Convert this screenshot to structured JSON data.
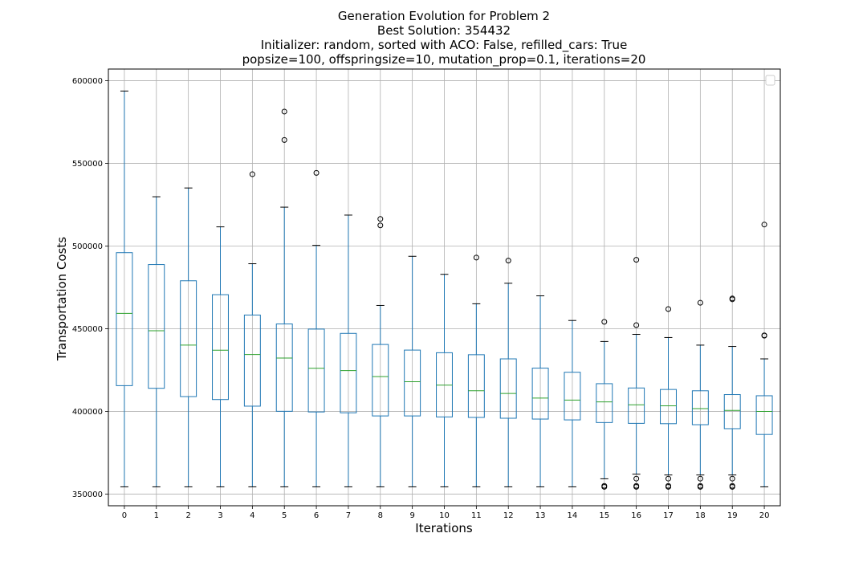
{
  "chart_data": {
    "type": "box",
    "title_lines": [
      "Generation Evolution for Problem 2",
      "Best Solution: 354432",
      "Initializer: random, sorted with ACO: False, refilled_cars: True",
      "popsize=100, offspringsize=10, mutation_prop=0.1, iterations=20"
    ],
    "xlabel": "Iterations",
    "ylabel": "Transportation Costs",
    "ylim": [
      343000,
      607000
    ],
    "yticks": [
      350000,
      400000,
      450000,
      500000,
      550000,
      600000
    ],
    "ytick_labels": [
      "350000",
      "400000",
      "450000",
      "500000",
      "550000",
      "600000"
    ],
    "grid": true,
    "legend": "top-right (empty)",
    "colors": {
      "box": "#1f77b4",
      "median": "#2ca02c",
      "whisker": "#1f77b4",
      "cap": "#000000",
      "grid": "#b0b0b0"
    },
    "categories": [
      "0",
      "1",
      "2",
      "3",
      "4",
      "5",
      "6",
      "7",
      "8",
      "9",
      "10",
      "11",
      "12",
      "13",
      "14",
      "15",
      "16",
      "17",
      "18",
      "19",
      "20"
    ],
    "boxes": [
      {
        "q1": 415600,
        "median": 459300,
        "q3": 496000,
        "whislo": 354432,
        "whishi": 593700,
        "fliers": []
      },
      {
        "q1": 414000,
        "median": 448800,
        "q3": 488800,
        "whislo": 354432,
        "whishi": 529800,
        "fliers": []
      },
      {
        "q1": 409000,
        "median": 440100,
        "q3": 479000,
        "whislo": 354432,
        "whishi": 535100,
        "fliers": []
      },
      {
        "q1": 407200,
        "median": 437000,
        "q3": 470600,
        "whislo": 354432,
        "whishi": 511600,
        "fliers": []
      },
      {
        "q1": 403200,
        "median": 434400,
        "q3": 458300,
        "whislo": 354432,
        "whishi": 489300,
        "fliers": [
          543400
        ]
      },
      {
        "q1": 400100,
        "median": 432300,
        "q3": 452900,
        "whislo": 354432,
        "whishi": 523500,
        "fliers": [
          564100,
          581300
        ]
      },
      {
        "q1": 399700,
        "median": 426100,
        "q3": 449800,
        "whislo": 354432,
        "whishi": 500400,
        "fliers": [
          544200
        ]
      },
      {
        "q1": 399200,
        "median": 424700,
        "q3": 447200,
        "whislo": 354432,
        "whishi": 518700,
        "fliers": []
      },
      {
        "q1": 397300,
        "median": 421100,
        "q3": 440500,
        "whislo": 354432,
        "whishi": 464100,
        "fliers": [
          512500,
          516400
        ]
      },
      {
        "q1": 397300,
        "median": 418000,
        "q3": 437100,
        "whislo": 354432,
        "whishi": 493800,
        "fliers": []
      },
      {
        "q1": 396700,
        "median": 415900,
        "q3": 435500,
        "whislo": 354432,
        "whishi": 482900,
        "fliers": []
      },
      {
        "q1": 396400,
        "median": 412500,
        "q3": 434300,
        "whislo": 354432,
        "whishi": 465100,
        "fliers": [
          493000
        ]
      },
      {
        "q1": 395900,
        "median": 410900,
        "q3": 431800,
        "whislo": 354432,
        "whishi": 477500,
        "fliers": [
          491200
        ]
      },
      {
        "q1": 395400,
        "median": 408100,
        "q3": 426200,
        "whislo": 354432,
        "whishi": 469900,
        "fliers": []
      },
      {
        "q1": 394900,
        "median": 406900,
        "q3": 423700,
        "whislo": 354432,
        "whishi": 455000,
        "fliers": []
      },
      {
        "q1": 393300,
        "median": 405800,
        "q3": 416800,
        "whislo": 359300,
        "whishi": 442300,
        "fliers": [
          354432,
          355000,
          454200
        ]
      },
      {
        "q1": 392800,
        "median": 404000,
        "q3": 414200,
        "whislo": 362100,
        "whishi": 446600,
        "fliers": [
          354432,
          355000,
          359400,
          452200,
          491700
        ]
      },
      {
        "q1": 392600,
        "median": 403400,
        "q3": 413300,
        "whislo": 361600,
        "whishi": 444700,
        "fliers": [
          354432,
          355000,
          359400,
          461900
        ]
      },
      {
        "q1": 392000,
        "median": 401700,
        "q3": 412500,
        "whislo": 361600,
        "whishi": 440100,
        "fliers": [
          354432,
          355000,
          359400,
          465700
        ]
      },
      {
        "q1": 389600,
        "median": 400600,
        "q3": 410200,
        "whislo": 361600,
        "whishi": 439300,
        "fliers": [
          354432,
          355000,
          359400,
          467800,
          468300
        ]
      },
      {
        "q1": 386100,
        "median": 400000,
        "q3": 409500,
        "whislo": 354432,
        "whishi": 431800,
        "fliers": [
          445800,
          446000,
          513000
        ]
      }
    ]
  }
}
